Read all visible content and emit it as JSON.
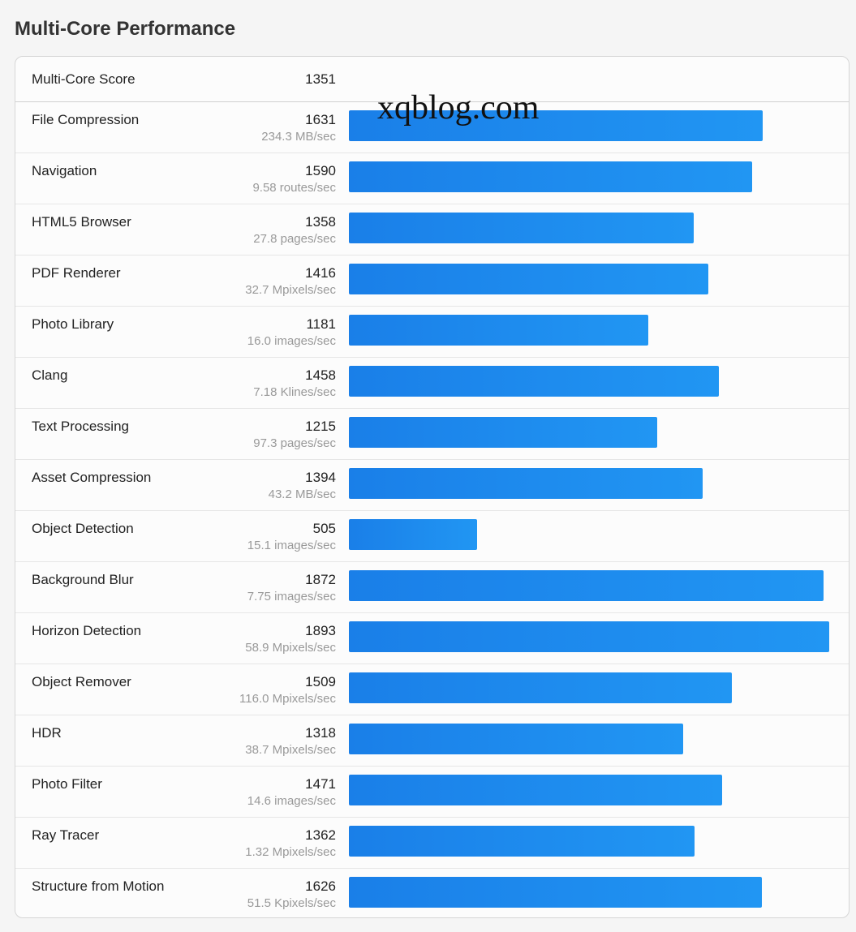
{
  "header": {
    "title": "Multi-Core Performance"
  },
  "summary": {
    "label": "Multi-Core Score",
    "score": "1351"
  },
  "watermark": "xqblog.com",
  "colors": {
    "bar_start": "#1a7fe8",
    "bar_end": "#2196f3",
    "rate_text": "#999999"
  },
  "benchmarks": [
    {
      "name": "File Compression",
      "score": "1631",
      "rate": "234.3 MB/sec",
      "value": 1631
    },
    {
      "name": "Navigation",
      "score": "1590",
      "rate": "9.58 routes/sec",
      "value": 1590
    },
    {
      "name": "HTML5 Browser",
      "score": "1358",
      "rate": "27.8 pages/sec",
      "value": 1358
    },
    {
      "name": "PDF Renderer",
      "score": "1416",
      "rate": "32.7 Mpixels/sec",
      "value": 1416
    },
    {
      "name": "Photo Library",
      "score": "1181",
      "rate": "16.0 images/sec",
      "value": 1181
    },
    {
      "name": "Clang",
      "score": "1458",
      "rate": "7.18 Klines/sec",
      "value": 1458
    },
    {
      "name": "Text Processing",
      "score": "1215",
      "rate": "97.3 pages/sec",
      "value": 1215
    },
    {
      "name": "Asset Compression",
      "score": "1394",
      "rate": "43.2 MB/sec",
      "value": 1394
    },
    {
      "name": "Object Detection",
      "score": "505",
      "rate": "15.1 images/sec",
      "value": 505
    },
    {
      "name": "Background Blur",
      "score": "1872",
      "rate": "7.75 images/sec",
      "value": 1872
    },
    {
      "name": "Horizon Detection",
      "score": "1893",
      "rate": "58.9 Mpixels/sec",
      "value": 1893
    },
    {
      "name": "Object Remover",
      "score": "1509",
      "rate": "116.0 Mpixels/sec",
      "value": 1509
    },
    {
      "name": "HDR",
      "score": "1318",
      "rate": "38.7 Mpixels/sec",
      "value": 1318
    },
    {
      "name": "Photo Filter",
      "score": "1471",
      "rate": "14.6 images/sec",
      "value": 1471
    },
    {
      "name": "Ray Tracer",
      "score": "1362",
      "rate": "1.32 Mpixels/sec",
      "value": 1362
    },
    {
      "name": "Structure from Motion",
      "score": "1626",
      "rate": "51.5 Kpixels/sec",
      "value": 1626
    }
  ]
}
